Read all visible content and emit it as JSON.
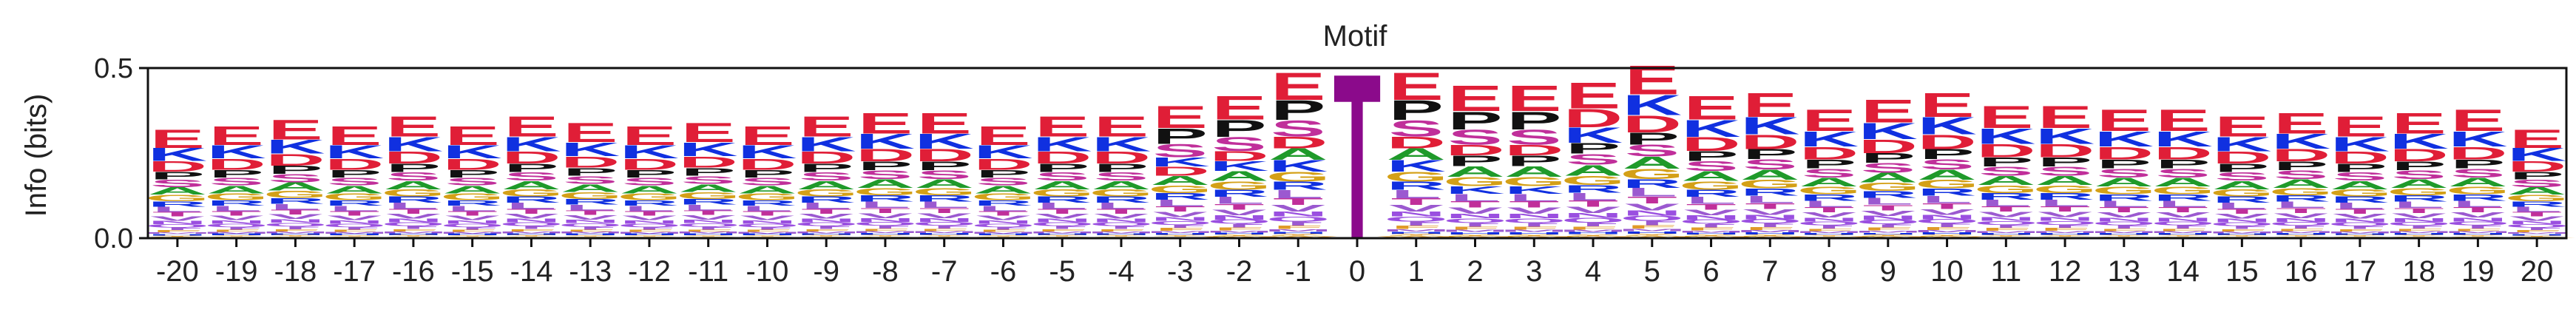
{
  "chart_data": {
    "type": "sequence-logo",
    "title": "Motif",
    "ylabel": "Info (bits)",
    "xlabel": "",
    "ylim": [
      0,
      0.5
    ],
    "yticks": [
      "0.0",
      "0.5"
    ],
    "center_position": 0,
    "center_residue": "T",
    "center_height": 0.5,
    "center_color": "#8B0A8B",
    "colors": {
      "E": "#E01E37",
      "D": "#E01E37",
      "K": "#1030E0",
      "R": "#1030E0",
      "H": "#1030E0",
      "P": "#111111",
      "G": "#D4A017",
      "A": "#1F9A2A",
      "S": "#C02F9A",
      "T": "#C02F9A",
      "N": "#9A4FE0",
      "Q": "#9A4FE0",
      "L": "#9B59D0",
      "I": "#9B59D0",
      "V": "#9B59D0",
      "M": "#9B59D0",
      "F": "#E09A2A",
      "Y": "#E09A2A",
      "W": "#E09A2A",
      "C": "#D4A017"
    },
    "positions": [
      {
        "x": "-20",
        "total": 0.32
      },
      {
        "x": "-19",
        "total": 0.33
      },
      {
        "x": "-18",
        "total": 0.35
      },
      {
        "x": "-17",
        "total": 0.33
      },
      {
        "x": "-16",
        "total": 0.36
      },
      {
        "x": "-15",
        "total": 0.33
      },
      {
        "x": "-14",
        "total": 0.36
      },
      {
        "x": "-13",
        "total": 0.34
      },
      {
        "x": "-12",
        "total": 0.33
      },
      {
        "x": "-11",
        "total": 0.34
      },
      {
        "x": "-10",
        "total": 0.33
      },
      {
        "x": "-9",
        "total": 0.36
      },
      {
        "x": "-8",
        "total": 0.37
      },
      {
        "x": "-7",
        "total": 0.37
      },
      {
        "x": "-6",
        "total": 0.33
      },
      {
        "x": "-5",
        "total": 0.36
      },
      {
        "x": "-4",
        "total": 0.36
      },
      {
        "x": "-3",
        "total": 0.39
      },
      {
        "x": "-2",
        "total": 0.42
      },
      {
        "x": "-1",
        "total": 0.49
      },
      {
        "x": "0",
        "total": 0.5
      },
      {
        "x": "1",
        "total": 0.49
      },
      {
        "x": "2",
        "total": 0.45
      },
      {
        "x": "3",
        "total": 0.45
      },
      {
        "x": "4",
        "total": 0.46
      },
      {
        "x": "5",
        "total": 0.51
      },
      {
        "x": "6",
        "total": 0.42
      },
      {
        "x": "7",
        "total": 0.43
      },
      {
        "x": "8",
        "total": 0.38
      },
      {
        "x": "9",
        "total": 0.41
      },
      {
        "x": "10",
        "total": 0.43
      },
      {
        "x": "11",
        "total": 0.39
      },
      {
        "x": "12",
        "total": 0.39
      },
      {
        "x": "13",
        "total": 0.38
      },
      {
        "x": "14",
        "total": 0.38
      },
      {
        "x": "15",
        "total": 0.36
      },
      {
        "x": "16",
        "total": 0.37
      },
      {
        "x": "17",
        "total": 0.36
      },
      {
        "x": "18",
        "total": 0.37
      },
      {
        "x": "19",
        "total": 0.38
      },
      {
        "x": "20",
        "total": 0.32
      }
    ],
    "stack_order_top_down": [
      "E",
      "K",
      "D",
      "P",
      "S",
      "A",
      "G",
      "R",
      "L",
      "T",
      "V",
      "N",
      "Q",
      "I",
      "F",
      "M",
      "H",
      "Y",
      "C",
      "W"
    ],
    "stack_fractions": [
      0.17,
      0.12,
      0.1,
      0.07,
      0.07,
      0.07,
      0.06,
      0.05,
      0.05,
      0.04,
      0.04,
      0.03,
      0.03,
      0.025,
      0.02,
      0.015,
      0.015,
      0.01,
      0.005,
      0.005
    ],
    "variants": {
      "-3": [
        "E",
        "P",
        "S",
        "K",
        "D",
        "A",
        "G",
        "R",
        "L",
        "T",
        "V",
        "N",
        "Q",
        "I",
        "F",
        "M",
        "H",
        "Y",
        "C",
        "W"
      ],
      "-2": [
        "E",
        "P",
        "S",
        "D",
        "K",
        "A",
        "G",
        "R",
        "L",
        "T",
        "V",
        "N",
        "Q",
        "I",
        "F",
        "M",
        "H",
        "Y",
        "C",
        "W"
      ],
      "-1": [
        "E",
        "P",
        "S",
        "D",
        "A",
        "K",
        "G",
        "R",
        "L",
        "T",
        "V",
        "N",
        "Q",
        "I",
        "F",
        "M",
        "H",
        "Y",
        "C",
        "W"
      ],
      "1": [
        "E",
        "P",
        "S",
        "D",
        "A",
        "K",
        "G",
        "R",
        "L",
        "T",
        "V",
        "N",
        "Q",
        "I",
        "F",
        "M",
        "H",
        "Y",
        "C",
        "W"
      ],
      "2": [
        "E",
        "P",
        "S",
        "D",
        "P",
        "A",
        "G",
        "K",
        "L",
        "T",
        "V",
        "N",
        "Q",
        "I",
        "F",
        "M",
        "H",
        "Y",
        "C",
        "W"
      ],
      "3": [
        "E",
        "P",
        "S",
        "D",
        "P",
        "A",
        "G",
        "K",
        "L",
        "T",
        "V",
        "N",
        "Q",
        "I",
        "F",
        "M",
        "H",
        "Y",
        "C",
        "W"
      ],
      "4": [
        "E",
        "D",
        "K",
        "P",
        "S",
        "A",
        "G",
        "R",
        "L",
        "T",
        "V",
        "N",
        "Q",
        "I",
        "F",
        "M",
        "H",
        "Y",
        "C",
        "W"
      ],
      "5": [
        "E",
        "K",
        "D",
        "P",
        "S",
        "A",
        "G",
        "R",
        "L",
        "T",
        "V",
        "N",
        "Q",
        "I",
        "F",
        "M",
        "H",
        "Y",
        "C",
        "W"
      ]
    }
  }
}
